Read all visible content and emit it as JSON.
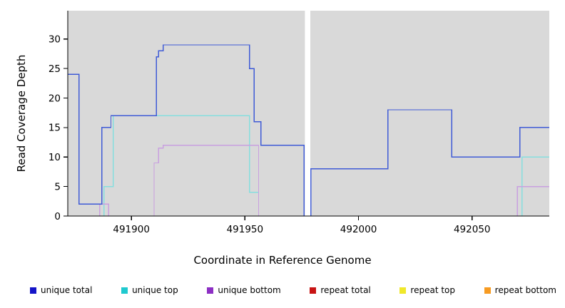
{
  "chart_data": {
    "type": "line",
    "step": "after",
    "title": "",
    "xlabel": "Coordinate in Reference Genome",
    "ylabel": "Read Coverage Depth",
    "xlim": [
      491872,
      492084
    ],
    "ylim": [
      0,
      34.8
    ],
    "xticks": [
      491900,
      491950,
      492000,
      492050
    ],
    "yticks": [
      0,
      5,
      10,
      15,
      20,
      25,
      30
    ],
    "grid": false,
    "plot_bg": "#d9d9d9",
    "axis_color": "#000000",
    "gap_band": {
      "x1": 491976.4,
      "x2": 491978.8,
      "color": "#ffffff"
    },
    "series": [
      {
        "name": "repeat total",
        "color": "#cc2a2a",
        "points": [
          [
            491872,
            0
          ],
          [
            492084,
            0
          ]
        ]
      },
      {
        "name": "repeat top",
        "color": "#ece33b",
        "points": [
          [
            491872,
            0
          ],
          [
            492084,
            0
          ]
        ]
      },
      {
        "name": "repeat bottom",
        "color": "#f7a11f",
        "points": [
          [
            491872,
            0
          ],
          [
            492084,
            0
          ]
        ]
      },
      {
        "name": "unique top",
        "color": "#86dede",
        "points": [
          [
            491872,
            0
          ],
          [
            491888,
            5
          ],
          [
            491892,
            17
          ],
          [
            491952,
            4
          ],
          [
            491956,
            0
          ],
          [
            492072,
            10
          ],
          [
            492084,
            10
          ]
        ]
      },
      {
        "name": "unique bottom",
        "color": "#c9a0e0",
        "points": [
          [
            491872,
            0
          ],
          [
            491886,
            2
          ],
          [
            491890,
            0
          ],
          [
            491910,
            9
          ],
          [
            491912,
            11.5
          ],
          [
            491914,
            12
          ],
          [
            491956,
            0
          ],
          [
            492070,
            5
          ],
          [
            492084,
            5
          ]
        ]
      },
      {
        "name": "unique total",
        "color": "#3f5bd6",
        "points": [
          [
            491872,
            24
          ],
          [
            491877,
            2
          ],
          [
            491887,
            15
          ],
          [
            491891,
            17
          ],
          [
            491911,
            27
          ],
          [
            491912,
            28
          ],
          [
            491914,
            29
          ],
          [
            491952,
            25
          ],
          [
            491954,
            16
          ],
          [
            491957,
            12
          ],
          [
            491976,
            0
          ],
          [
            491979,
            8
          ],
          [
            492013,
            18
          ],
          [
            492041,
            10
          ],
          [
            492071,
            15
          ],
          [
            492084,
            15
          ]
        ]
      }
    ],
    "legend": {
      "position": "bottom",
      "items": [
        {
          "label": "unique total",
          "color": "#1414c8"
        },
        {
          "label": "unique top",
          "color": "#1fc9cf"
        },
        {
          "label": "unique bottom",
          "color": "#8d2fc4"
        },
        {
          "label": "repeat total",
          "color": "#c81414"
        },
        {
          "label": "repeat top",
          "color": "#f0e82a"
        },
        {
          "label": "repeat bottom",
          "color": "#f79b22"
        }
      ]
    }
  }
}
